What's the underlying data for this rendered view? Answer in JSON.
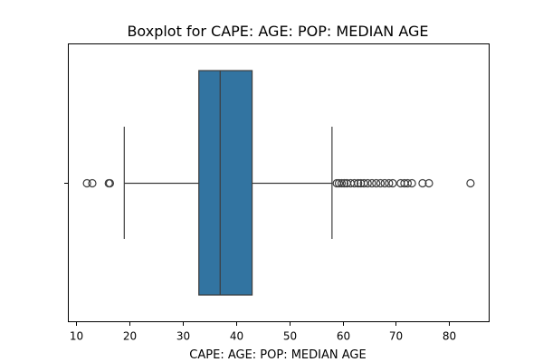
{
  "chart_data": {
    "type": "boxplot",
    "title": "Boxplot for CAPE: AGE: POP: MEDIAN AGE",
    "xlabel": "CAPE: AGE: POP: MEDIAN AGE",
    "ylabel": "",
    "xlim": [
      8.5,
      87.5
    ],
    "xticks": [
      10,
      20,
      30,
      40,
      50,
      60,
      70,
      80
    ],
    "grid": false,
    "legend": "none",
    "box": {
      "whisker_low": 19,
      "q1": 33,
      "median": 37,
      "q3": 43,
      "whisker_high": 58,
      "fill_color": "#3274a1",
      "line_color": "#3d3d3d"
    },
    "outliers": [
      12,
      13,
      16.1,
      16.3,
      58.9,
      59.3,
      59.8,
      60.3,
      60.8,
      61.5,
      62.2,
      62.9,
      63.4,
      64.0,
      64.7,
      65.5,
      66.3,
      67.1,
      67.9,
      68.7,
      69.4,
      70.9,
      71.6,
      72.2,
      73.0,
      75.0,
      76.2,
      84.0
    ]
  }
}
